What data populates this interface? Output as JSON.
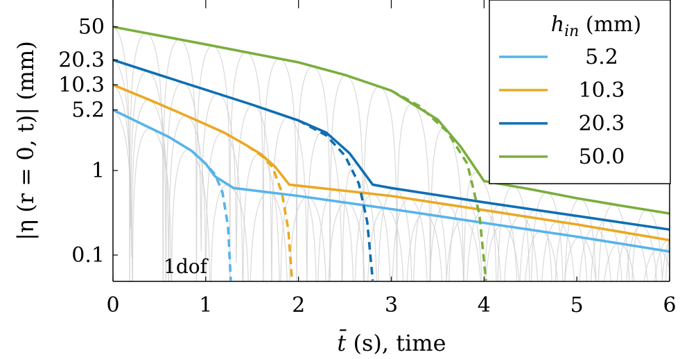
{
  "chart_data": {
    "type": "line",
    "title": "",
    "xlabel_var": "t̄",
    "xlabel_rest": " (s), time",
    "ylabel": "|η (r = 0, t)| (mm)",
    "xlim": [
      0,
      6
    ],
    "ylim_log": [
      0.05,
      100
    ],
    "y_scale": "log",
    "grid": false,
    "x_ticks": [
      0,
      1,
      2,
      3,
      4,
      5,
      6
    ],
    "x_tick_labels": [
      "0",
      "1",
      "2",
      "3",
      "4",
      "5",
      "6"
    ],
    "y_ticks": [
      50,
      20.3,
      10.3,
      5.2,
      1,
      0.1
    ],
    "y_tick_labels": [
      "50",
      "20.3",
      "10.3",
      "5.2",
      "1",
      "0.1"
    ],
    "legend": {
      "placement": "top-right",
      "title_var": "h",
      "title_sub": "in",
      "title_rest": " (mm)"
    },
    "annotation": "1dof",
    "series": [
      {
        "name": "5.2",
        "color": "#56B4E9",
        "amplitude": 5.2,
        "envelope": [
          [
            0,
            5.2
          ],
          [
            0.3,
            3.6
          ],
          [
            0.6,
            2.5
          ],
          [
            0.85,
            1.7
          ],
          [
            1.0,
            1.2
          ],
          [
            1.1,
            0.85
          ],
          [
            1.3,
            0.62
          ],
          [
            2,
            0.5
          ],
          [
            3,
            0.35
          ],
          [
            4,
            0.24
          ],
          [
            5,
            0.165
          ],
          [
            6,
            0.11
          ]
        ],
        "linear": [
          [
            0.85,
            1.7
          ],
          [
            1.0,
            1.2
          ],
          [
            1.1,
            0.9
          ],
          [
            1.18,
            0.55
          ],
          [
            1.24,
            0.22
          ],
          [
            1.27,
            0.05
          ]
        ]
      },
      {
        "name": "10.3",
        "color": "#E9A923",
        "amplitude": 10.3,
        "envelope": [
          [
            0,
            10.3
          ],
          [
            0.4,
            6.8
          ],
          [
            0.8,
            4.4
          ],
          [
            1.2,
            2.8
          ],
          [
            1.45,
            1.95
          ],
          [
            1.6,
            1.55
          ],
          [
            1.75,
            1.1
          ],
          [
            1.9,
            0.68
          ],
          [
            3,
            0.5
          ],
          [
            4,
            0.34
          ],
          [
            5,
            0.23
          ],
          [
            6,
            0.15
          ]
        ],
        "linear": [
          [
            1.45,
            1.95
          ],
          [
            1.6,
            1.5
          ],
          [
            1.72,
            1.1
          ],
          [
            1.82,
            0.55
          ],
          [
            1.89,
            0.2
          ],
          [
            1.93,
            0.05
          ]
        ]
      },
      {
        "name": "20.3",
        "color": "#0F6FB3",
        "amplitude": 20.3,
        "envelope": [
          [
            0,
            20.3
          ],
          [
            0.5,
            13.5
          ],
          [
            1.0,
            9.0
          ],
          [
            1.5,
            6.0
          ],
          [
            2.0,
            3.9
          ],
          [
            2.3,
            2.8
          ],
          [
            2.55,
            1.6
          ],
          [
            2.8,
            0.68
          ],
          [
            3,
            0.62
          ],
          [
            4,
            0.42
          ],
          [
            5,
            0.29
          ],
          [
            6,
            0.2
          ]
        ],
        "linear": [
          [
            2.0,
            3.9
          ],
          [
            2.3,
            2.6
          ],
          [
            2.5,
            1.5
          ],
          [
            2.65,
            0.7
          ],
          [
            2.74,
            0.25
          ],
          [
            2.8,
            0.05
          ]
        ]
      },
      {
        "name": "50.0",
        "color": "#7AAE3C",
        "amplitude": 50.0,
        "envelope": [
          [
            0,
            50
          ],
          [
            1,
            31
          ],
          [
            2,
            19
          ],
          [
            2.5,
            13.5
          ],
          [
            3,
            8.8
          ],
          [
            3.5,
            4.0
          ],
          [
            3.75,
            1.9
          ],
          [
            4.0,
            0.75
          ],
          [
            4.5,
            0.6
          ],
          [
            5,
            0.47
          ],
          [
            5.5,
            0.38
          ],
          [
            6,
            0.31
          ]
        ],
        "linear": [
          [
            3.0,
            8.8
          ],
          [
            3.3,
            5.8
          ],
          [
            3.6,
            2.9
          ],
          [
            3.82,
            1.2
          ],
          [
            3.95,
            0.3
          ],
          [
            4.02,
            0.05
          ]
        ]
      }
    ]
  }
}
